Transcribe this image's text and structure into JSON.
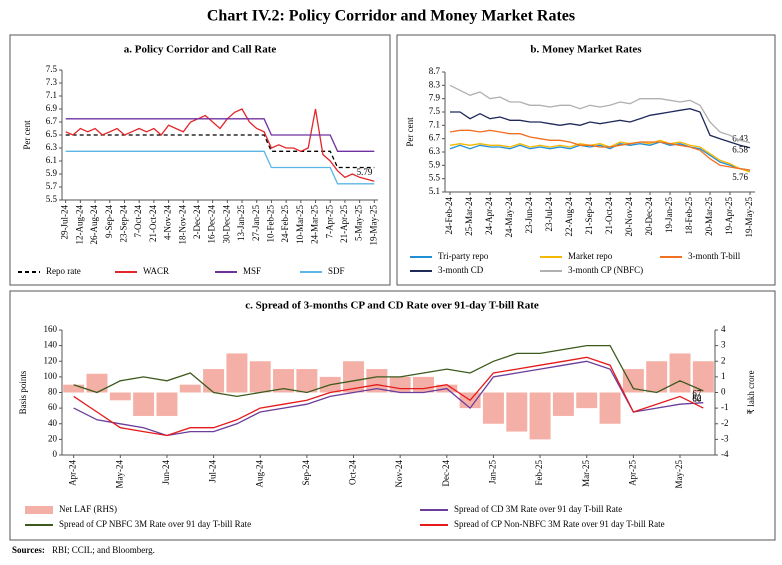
{
  "title": "Chart IV.2: Policy Corridor and Money Market Rates",
  "sources_label": "Sources:",
  "sources": "RBI; CCIL; and Bloomberg.",
  "chart_data": [
    {
      "type": "line",
      "title": "a. Policy Corridor and Call Rate",
      "ylabel": "Per cent",
      "categories": [
        "29-Jul-24",
        null,
        "12-Aug-24",
        null,
        "26-Aug-24",
        null,
        "9-Sep-24",
        null,
        "23-Sep-24",
        null,
        "7-Oct-24",
        null,
        "21-Oct-24",
        null,
        "4-Nov-24",
        null,
        "18-Nov-24",
        null,
        "2-Dec-24",
        null,
        "16-Dec-24",
        null,
        "30-Dec-24",
        null,
        "13-Jan-25",
        null,
        "27-Jan-25",
        null,
        "10-Feb-25",
        null,
        "24-Feb-25",
        null,
        "10-Mar-25",
        null,
        "24-Mar-25",
        null,
        "7-Apr-25",
        null,
        "21-Apr-25",
        null,
        "5-May-25",
        null,
        "19-May-25"
      ],
      "ylim": [
        5.5,
        7.5
      ],
      "yticks": [
        5.5,
        5.7,
        5.9,
        6.1,
        6.3,
        6.5,
        6.7,
        6.9,
        7.1,
        7.3,
        7.5
      ],
      "series": [
        {
          "name": "Repo rate",
          "color": "#000000",
          "dashed": true,
          "values": [
            6.5,
            6.5,
            6.5,
            6.5,
            6.5,
            6.5,
            6.5,
            6.5,
            6.5,
            6.5,
            6.5,
            6.5,
            6.5,
            6.5,
            6.5,
            6.5,
            6.5,
            6.5,
            6.5,
            6.5,
            6.5,
            6.5,
            6.5,
            6.5,
            6.5,
            6.5,
            6.5,
            6.5,
            6.25,
            6.25,
            6.25,
            6.25,
            6.25,
            6.25,
            6.25,
            6.25,
            6.25,
            6.0,
            6.0,
            6.0,
            6.0,
            6.0,
            6.0
          ]
        },
        {
          "name": "WACR",
          "color": "#e3262a",
          "label_last": true,
          "values": [
            6.55,
            6.5,
            6.6,
            6.55,
            6.6,
            6.5,
            6.55,
            6.6,
            6.5,
            6.55,
            6.6,
            6.55,
            6.6,
            6.5,
            6.65,
            6.6,
            6.55,
            6.7,
            6.75,
            6.8,
            6.7,
            6.6,
            6.75,
            6.85,
            6.9,
            6.7,
            6.6,
            6.55,
            6.3,
            6.35,
            6.3,
            6.3,
            6.25,
            6.3,
            6.9,
            6.2,
            6.1,
            5.95,
            5.85,
            5.9,
            5.85,
            5.82,
            5.79
          ]
        },
        {
          "name": "MSF",
          "color": "#7030a0",
          "values": [
            6.75,
            6.75,
            6.75,
            6.75,
            6.75,
            6.75,
            6.75,
            6.75,
            6.75,
            6.75,
            6.75,
            6.75,
            6.75,
            6.75,
            6.75,
            6.75,
            6.75,
            6.75,
            6.75,
            6.75,
            6.75,
            6.75,
            6.75,
            6.75,
            6.75,
            6.75,
            6.75,
            6.75,
            6.5,
            6.5,
            6.5,
            6.5,
            6.5,
            6.5,
            6.5,
            6.5,
            6.5,
            6.25,
            6.25,
            6.25,
            6.25,
            6.25,
            6.25
          ]
        },
        {
          "name": "SDF",
          "color": "#5bb5e5",
          "values": [
            6.25,
            6.25,
            6.25,
            6.25,
            6.25,
            6.25,
            6.25,
            6.25,
            6.25,
            6.25,
            6.25,
            6.25,
            6.25,
            6.25,
            6.25,
            6.25,
            6.25,
            6.25,
            6.25,
            6.25,
            6.25,
            6.25,
            6.25,
            6.25,
            6.25,
            6.25,
            6.25,
            6.25,
            6.0,
            6.0,
            6.0,
            6.0,
            6.0,
            6.0,
            6.0,
            6.0,
            6.0,
            5.75,
            5.75,
            5.75,
            5.75,
            5.75,
            5.75
          ]
        }
      ]
    },
    {
      "type": "line",
      "title": "b. Money Market Rates",
      "ylabel": "Per cent",
      "categories": [
        "24-Feb-24",
        null,
        "25-Mar-24",
        null,
        "24-Apr-24",
        null,
        "24-May-24",
        null,
        "23-Jun-24",
        null,
        "23-Jul-24",
        null,
        "22-Aug-24",
        null,
        "21-Sep-24",
        null,
        "21-Oct-24",
        null,
        "20-Nov-24",
        null,
        "20-Dec-24",
        null,
        "19-Jan-25",
        null,
        "18-Feb-25",
        null,
        "20-Mar-25",
        null,
        "19-Apr-25",
        null,
        "19-May-25"
      ],
      "ylim": [
        5.1,
        8.7
      ],
      "yticks": [
        5.1,
        5.5,
        5.9,
        6.3,
        6.7,
        7.1,
        7.5,
        7.9,
        8.3,
        8.7
      ],
      "series": [
        {
          "name": "Tri-party repo",
          "color": "#1f8fd6",
          "values": [
            6.4,
            6.5,
            6.4,
            6.5,
            6.45,
            6.45,
            6.4,
            6.5,
            6.4,
            6.45,
            6.4,
            6.45,
            6.4,
            6.5,
            6.45,
            6.5,
            6.4,
            6.55,
            6.5,
            6.55,
            6.5,
            6.6,
            6.5,
            6.55,
            6.45,
            6.4,
            6.2,
            6.0,
            5.9,
            5.8,
            5.75
          ]
        },
        {
          "name": "Market repo",
          "color": "#f5b800",
          "values": [
            6.5,
            6.55,
            6.5,
            6.55,
            6.5,
            6.5,
            6.45,
            6.55,
            6.45,
            6.5,
            6.45,
            6.5,
            6.45,
            6.55,
            6.5,
            6.55,
            6.45,
            6.6,
            6.55,
            6.6,
            6.55,
            6.65,
            6.55,
            6.6,
            6.5,
            6.45,
            6.25,
            6.05,
            5.95,
            5.8,
            5.7
          ]
        },
        {
          "name": "3-month T-bill",
          "color": "#f07020",
          "label_last": true,
          "values": [
            6.9,
            6.95,
            6.95,
            6.9,
            6.95,
            6.9,
            6.85,
            6.85,
            6.75,
            6.7,
            6.65,
            6.65,
            6.6,
            6.5,
            6.5,
            6.45,
            6.45,
            6.5,
            6.55,
            6.6,
            6.6,
            6.6,
            6.55,
            6.5,
            6.45,
            6.35,
            6.1,
            5.9,
            5.85,
            5.8,
            5.76
          ]
        },
        {
          "name": "3-month CD",
          "color": "#1f2a5a",
          "label_last": true,
          "values": [
            7.5,
            7.5,
            7.3,
            7.45,
            7.3,
            7.35,
            7.25,
            7.25,
            7.2,
            7.2,
            7.15,
            7.1,
            7.15,
            7.1,
            7.2,
            7.15,
            7.2,
            7.25,
            7.2,
            7.3,
            7.4,
            7.45,
            7.5,
            7.55,
            7.6,
            7.5,
            6.8,
            6.7,
            6.6,
            6.5,
            6.43
          ]
        },
        {
          "name": "3-month CP (NBFC)",
          "color": "#b0b0b0",
          "label_last": true,
          "values": [
            8.3,
            8.15,
            8.0,
            8.1,
            7.9,
            7.95,
            7.8,
            7.8,
            7.7,
            7.7,
            7.65,
            7.7,
            7.7,
            7.6,
            7.7,
            7.65,
            7.7,
            7.8,
            7.75,
            7.9,
            7.9,
            7.9,
            7.85,
            7.8,
            7.85,
            7.7,
            7.2,
            6.9,
            6.8,
            6.65,
            6.58
          ]
        }
      ]
    },
    {
      "type": "combo",
      "title": "c. Spread of 3-months CP and CD Rate over 91-day T-bill Rate",
      "ylabel": "Basis points",
      "y2label": "₹ lakh crore",
      "categories": [
        "Apr-24",
        null,
        "May-24",
        null,
        "Jun-24",
        null,
        "Jul-24",
        null,
        "Aug-24",
        null,
        "Sep-24",
        null,
        "Oct-24",
        null,
        "Nov-24",
        null,
        "Dec-24",
        null,
        "Jan-25",
        null,
        "Feb-25",
        null,
        "Mar-25",
        null,
        "Apr-25",
        null,
        "May-25",
        null
      ],
      "ylim": [
        0,
        160
      ],
      "yticks": [
        0,
        20,
        40,
        60,
        80,
        100,
        120,
        140,
        160
      ],
      "y2lim": [
        -4,
        4
      ],
      "y2ticks": [
        -4,
        -3,
        -2,
        -1,
        0,
        1,
        2,
        3,
        4
      ],
      "series": [
        {
          "name": "Net LAF (RHS)",
          "kind": "bar",
          "axis": "y2",
          "color": "#f4b0a6",
          "values": [
            0.5,
            1.2,
            -0.5,
            -1.5,
            -1.5,
            0.5,
            1.5,
            2.5,
            2.0,
            1.5,
            1.5,
            1.0,
            2.0,
            1.5,
            1.0,
            1.0,
            0.5,
            -1.0,
            -2.0,
            -2.5,
            -3.0,
            -1.5,
            -1.0,
            -2.0,
            1.5,
            2.0,
            2.5,
            2.0
          ]
        },
        {
          "name": "Spread of CD 3M Rate over 91 day T-bill Rate",
          "kind": "line",
          "color": "#6a3d9a",
          "label_last": true,
          "values": [
            60,
            45,
            40,
            35,
            25,
            30,
            30,
            40,
            55,
            60,
            65,
            75,
            80,
            85,
            80,
            80,
            85,
            60,
            100,
            105,
            110,
            115,
            120,
            110,
            55,
            60,
            65,
            67
          ]
        },
        {
          "name": "Spread of CP NBFC 3M Rate over 91 day T-bill Rate",
          "kind": "line",
          "color": "#3d5a1e",
          "label_last": true,
          "values": [
            90,
            80,
            95,
            100,
            95,
            105,
            80,
            75,
            80,
            85,
            80,
            90,
            95,
            100,
            100,
            105,
            110,
            105,
            120,
            130,
            130,
            135,
            140,
            140,
            85,
            80,
            95,
            82
          ]
        },
        {
          "name": "Spread of CP Non-NBFC 3M Rate over 91 day T-bill Rate",
          "kind": "line",
          "color": "#e41a1c",
          "label_last": true,
          "values": [
            75,
            55,
            35,
            30,
            25,
            35,
            35,
            45,
            60,
            65,
            70,
            80,
            85,
            90,
            85,
            85,
            90,
            70,
            105,
            110,
            115,
            120,
            125,
            115,
            55,
            65,
            75,
            60
          ]
        }
      ]
    }
  ]
}
